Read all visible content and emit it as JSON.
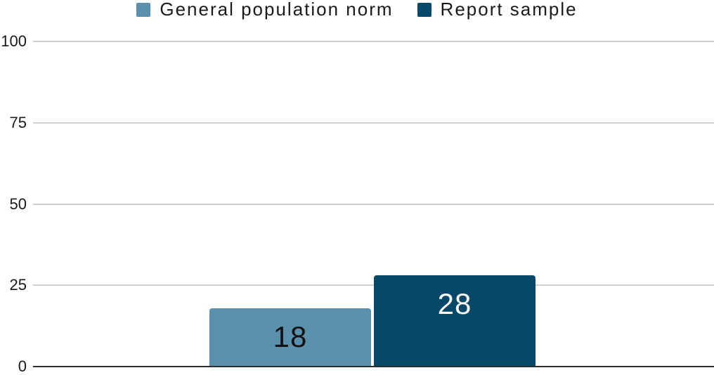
{
  "chart_data": {
    "type": "bar",
    "title": "",
    "categories": [
      ""
    ],
    "series": [
      {
        "name": "General population norm",
        "values": [
          18
        ],
        "color": "#5b91ad",
        "value_label": "18",
        "value_label_color": "#111111"
      },
      {
        "name": "Report sample",
        "values": [
          28
        ],
        "color": "#074868",
        "value_label": "28",
        "value_label_color": "#ffffff"
      }
    ],
    "ylim": [
      0,
      100
    ],
    "yticks": [
      0,
      25,
      50,
      75,
      100
    ],
    "grid": true,
    "gridline_color": "#d1d1d1",
    "axis_line_color": "#2d2d2d",
    "legend_position": "top",
    "bar_labels_position": "inside-top"
  }
}
